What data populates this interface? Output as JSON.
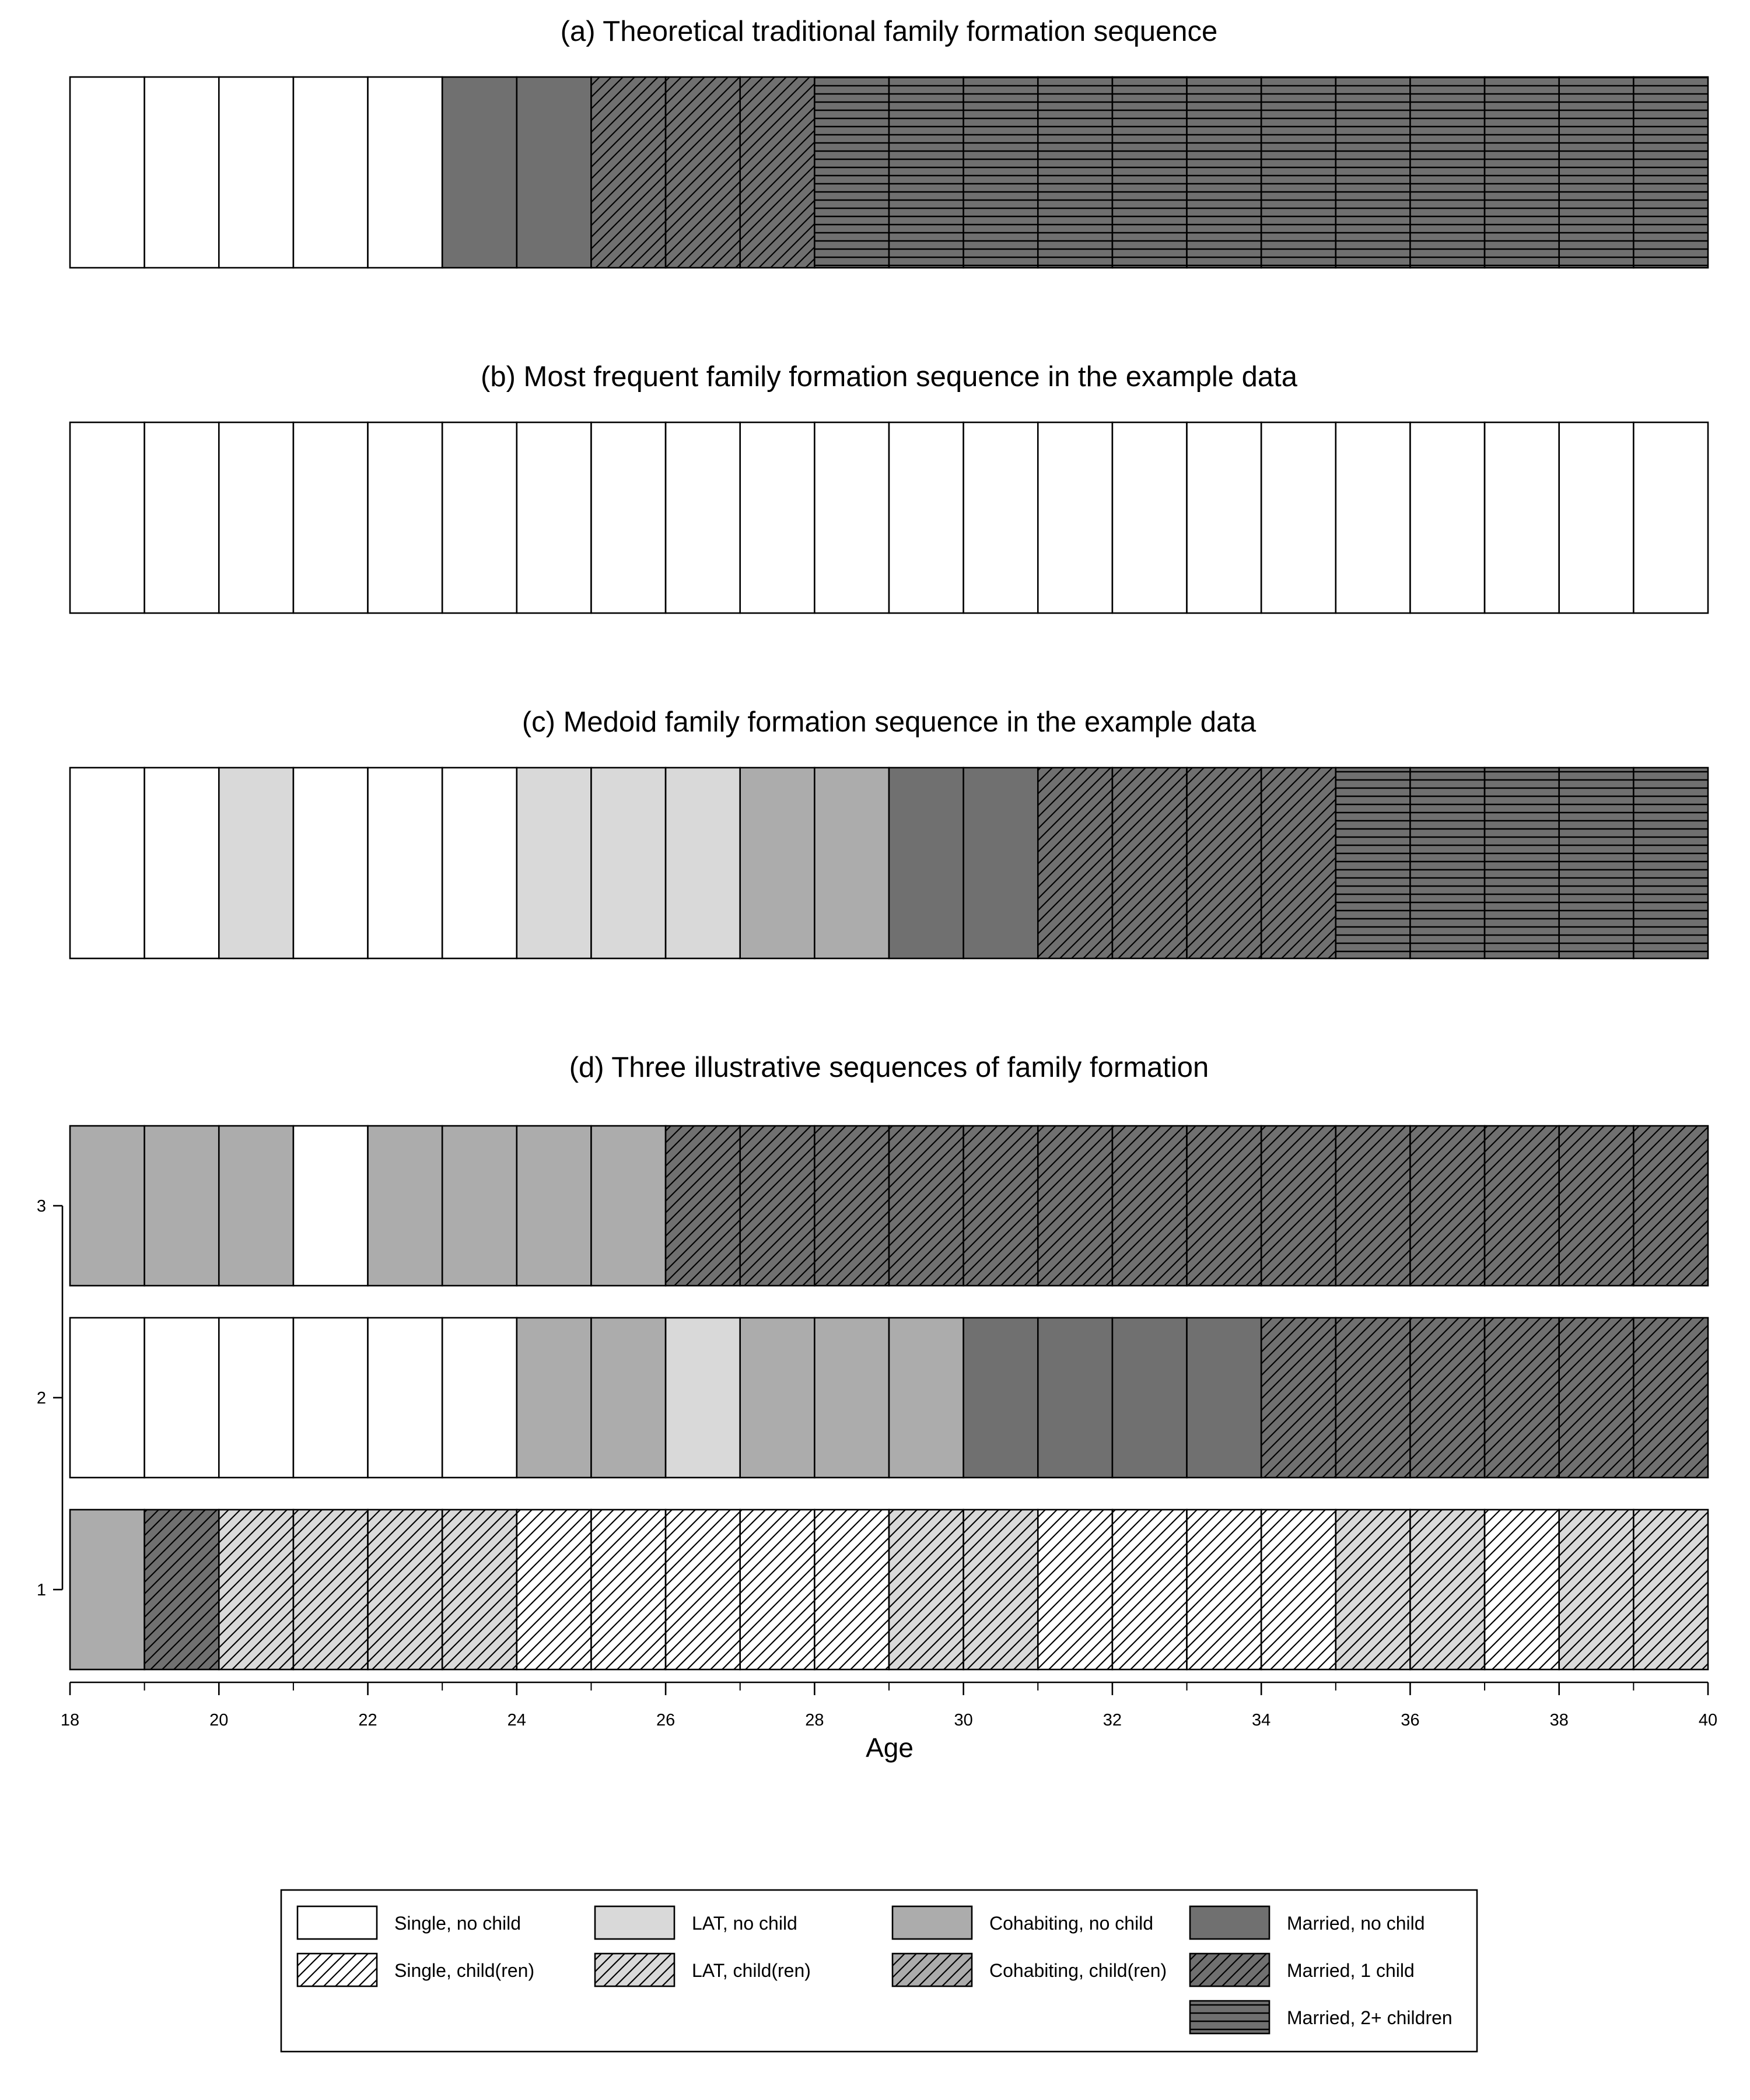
{
  "chart_data": {
    "type": "sequence-index-plot",
    "x_axis": {
      "label": "Age",
      "min": 18,
      "max": 40,
      "ticks": [
        18,
        20,
        22,
        24,
        26,
        28,
        30,
        32,
        34,
        36,
        38,
        40
      ]
    },
    "states": [
      {
        "code": "S",
        "label": "Single, no child",
        "fill": "#ffffff",
        "pattern": "none"
      },
      {
        "code": "L",
        "label": "LAT, no child",
        "fill": "#d9d9d9",
        "pattern": "none"
      },
      {
        "code": "C",
        "label": "Cohabiting, no child",
        "fill": "#acacac",
        "pattern": "none"
      },
      {
        "code": "M",
        "label": "Married, no child",
        "fill": "#707070",
        "pattern": "none"
      },
      {
        "code": "SC",
        "label": "Single, child(ren)",
        "fill": "#ffffff",
        "pattern": "diagonal"
      },
      {
        "code": "LC",
        "label": "LAT, child(ren)",
        "fill": "#d9d9d9",
        "pattern": "diagonal"
      },
      {
        "code": "CC",
        "label": "Cohabiting, child(ren)",
        "fill": "#acacac",
        "pattern": "diagonal"
      },
      {
        "code": "M1",
        "label": "Married, 1 child",
        "fill": "#707070",
        "pattern": "diagonal"
      },
      {
        "code": "M2",
        "label": "Married, 2+ children",
        "fill": "#707070",
        "pattern": "horizontal"
      }
    ],
    "panels": [
      {
        "title": "(a) Theoretical traditional family formation sequence",
        "sequences": [
          {
            "y_label": "",
            "states": [
              "S",
              "S",
              "S",
              "S",
              "S",
              "M",
              "M",
              "M1",
              "M1",
              "M1",
              "M2",
              "M2",
              "M2",
              "M2",
              "M2",
              "M2",
              "M2",
              "M2",
              "M2",
              "M2",
              "M2",
              "M2"
            ]
          }
        ]
      },
      {
        "title": "(b) Most frequent family formation sequence in the example data",
        "sequences": [
          {
            "y_label": "",
            "states": [
              "S",
              "S",
              "S",
              "S",
              "S",
              "S",
              "S",
              "S",
              "S",
              "S",
              "S",
              "S",
              "S",
              "S",
              "S",
              "S",
              "S",
              "S",
              "S",
              "S",
              "S",
              "S"
            ]
          }
        ]
      },
      {
        "title": "(c) Medoid family formation sequence in the example data",
        "sequences": [
          {
            "y_label": "",
            "states": [
              "S",
              "S",
              "L",
              "S",
              "S",
              "S",
              "L",
              "L",
              "L",
              "C",
              "C",
              "M",
              "M",
              "M1",
              "M1",
              "M1",
              "M1",
              "M2",
              "M2",
              "M2",
              "M2",
              "M2"
            ]
          }
        ]
      },
      {
        "title": "(d) Three illustrative sequences of family formation",
        "sequences": [
          {
            "y_label": "3",
            "states": [
              "C",
              "C",
              "C",
              "S",
              "C",
              "C",
              "C",
              "C",
              "M1",
              "M1",
              "M1",
              "M1",
              "M1",
              "M1",
              "M1",
              "M1",
              "M1",
              "M1",
              "M1",
              "M1",
              "M1",
              "M1"
            ]
          },
          {
            "y_label": "2",
            "states": [
              "S",
              "S",
              "S",
              "S",
              "S",
              "S",
              "C",
              "C",
              "L",
              "C",
              "C",
              "C",
              "M",
              "M",
              "M",
              "M",
              "M1",
              "M1",
              "M1",
              "M1",
              "M1",
              "M1"
            ]
          },
          {
            "y_label": "1",
            "states": [
              "C",
              "M1",
              "LC",
              "LC",
              "LC",
              "LC",
              "SC",
              "SC",
              "SC",
              "SC",
              "SC",
              "LC",
              "LC",
              "SC",
              "SC",
              "SC",
              "SC",
              "LC",
              "LC",
              "SC",
              "LC",
              "LC"
            ]
          }
        ]
      }
    ],
    "legend_placement": "bottom",
    "grid": false
  }
}
